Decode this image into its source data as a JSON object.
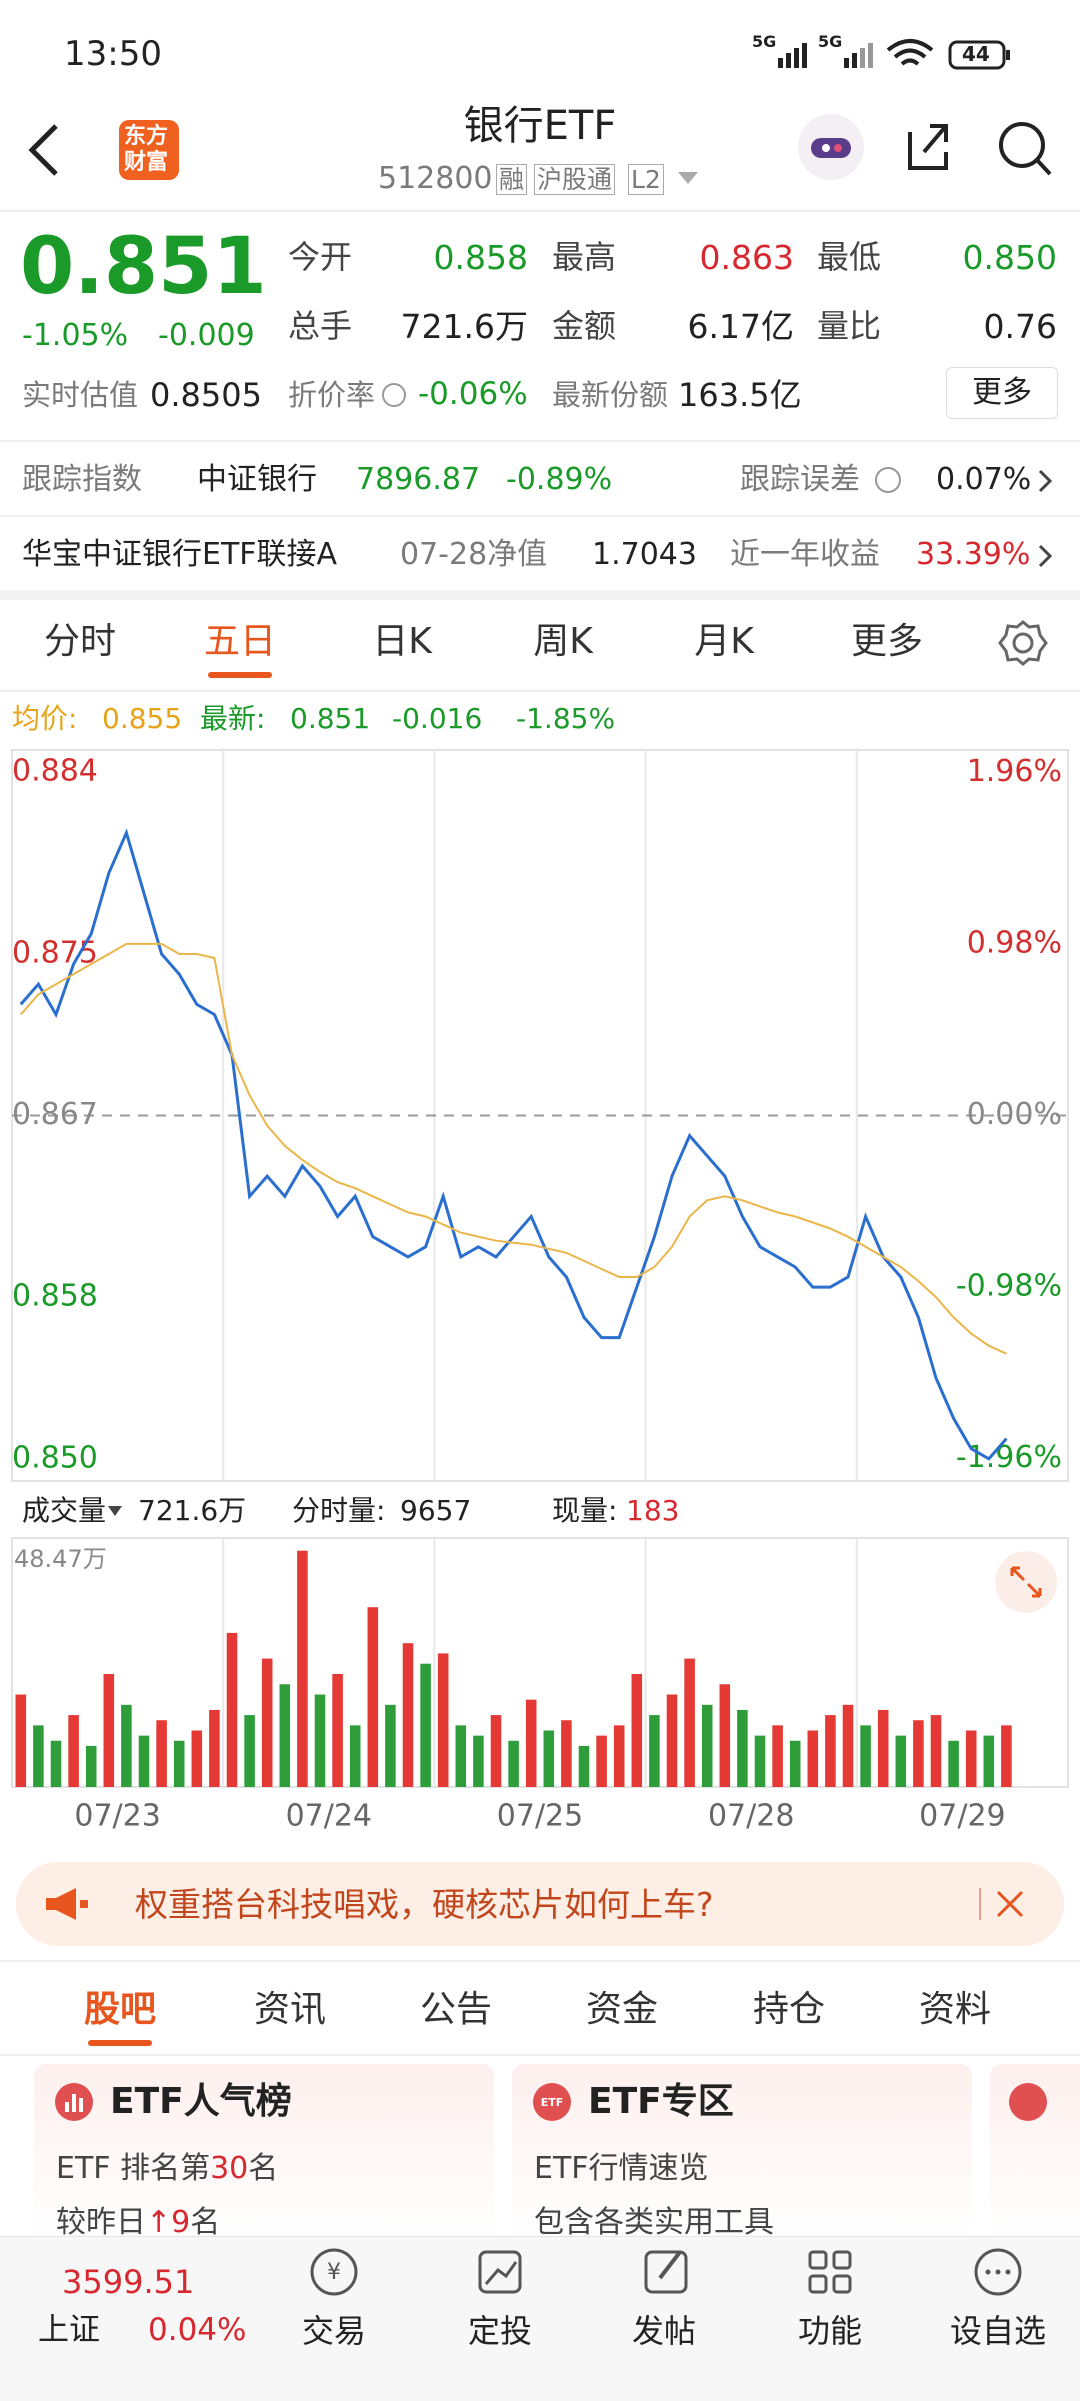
{
  "status_bar": {
    "time": "13:50",
    "network": [
      "5G",
      "5G"
    ],
    "battery": "44"
  },
  "header": {
    "logo": [
      "东方",
      "财富"
    ],
    "title": "银行ETF",
    "code": "512800",
    "tags": [
      "融",
      "沪股通",
      "L2"
    ]
  },
  "quote": {
    "price": "0.851",
    "change_pct": "-1.05%",
    "change": "-0.009",
    "stats": [
      {
        "label": "今开",
        "value": "0.858"
      },
      {
        "label": "最高",
        "value": "0.863"
      },
      {
        "label": "最低",
        "value": "0.850"
      },
      {
        "label": "总手",
        "value": "721.6万"
      },
      {
        "label": "金额",
        "value": "6.17亿"
      },
      {
        "label": "量比",
        "value": "0.76"
      }
    ],
    "estimate_label": "实时估值",
    "estimate": "0.8505",
    "discount_label": "折价率",
    "discount": "-0.06%",
    "shares_label": "最新份额",
    "shares": "163.5亿",
    "more": "更多"
  },
  "tracking": {
    "label": "跟踪指数",
    "index": "中证银行",
    "value": "7896.87",
    "change": "-0.89%",
    "error_label": "跟踪误差",
    "error": "0.07%"
  },
  "fund": {
    "name": "华宝中证银行ETF联接A",
    "nav_label": "07-28净值",
    "nav": "1.7043",
    "return_label": "近一年收益",
    "return": "33.39%"
  },
  "chart_tabs": [
    "分时",
    "五日",
    "日K",
    "周K",
    "月K",
    "更多"
  ],
  "info_line": {
    "avg_label": "均价: ",
    "avg": "0.855",
    "latest_label": "最新: ",
    "latest": "0.851",
    "change": "-0.016",
    "change_pct": "-1.85%"
  },
  "chart_data": [
    {
      "type": "line",
      "ylim": [
        0.8489,
        0.8851
      ],
      "yticks": [
        0.884,
        0.875,
        0.867,
        0.858,
        {
          "value": 0.85,
          "label": "0.850"
        }
      ],
      "y2lim": [
        -2.09,
        2.09
      ],
      "y2ticks": [
        {
          "value": 1.96,
          "label": "1.96%"
        },
        {
          "value": 0.98,
          "label": "0.98%"
        },
        {
          "value": 0,
          "label": "0.00%"
        },
        {
          "value": -0.98,
          "label": "-0.98%"
        },
        {
          "value": -1.96,
          "label": "-1.96%"
        }
      ],
      "day_labels": [
        "07/23",
        "07/24",
        "07/25",
        "07/28",
        "07/29"
      ],
      "series": [
        {
          "color": "#2a6fd0",
          "values": [
            0.8725,
            0.8735,
            0.872,
            0.8745,
            0.876,
            0.879,
            0.881,
            0.878,
            0.875,
            0.874,
            0.8725,
            0.872,
            0.87,
            0.863,
            0.864,
            0.863,
            0.8645,
            0.8635,
            0.862,
            0.863,
            0.861,
            0.8605,
            0.86,
            0.8605,
            0.863,
            0.86,
            0.8605,
            0.86,
            0.861,
            0.862,
            0.86,
            0.859,
            0.857,
            0.856,
            0.856,
            0.8585,
            0.861,
            0.864,
            0.866,
            0.865,
            0.864,
            0.862,
            0.8605,
            0.86,
            0.8595,
            0.8585,
            0.8585,
            0.859,
            0.862,
            0.86,
            0.859,
            0.857,
            0.854,
            0.852,
            0.8505,
            0.85,
            0.851
          ]
        },
        {
          "color": "#eab64a",
          "values": [
            0.872,
            0.873,
            0.8735,
            0.874,
            0.8745,
            0.875,
            0.8755,
            0.8755,
            0.8755,
            0.875,
            0.875,
            0.8748,
            0.87,
            0.868,
            0.8665,
            0.8655,
            0.8648,
            0.8642,
            0.8637,
            0.8634,
            0.863,
            0.8626,
            0.8622,
            0.862,
            0.8616,
            0.8612,
            0.861,
            0.8608,
            0.8607,
            0.8606,
            0.8604,
            0.8602,
            0.8598,
            0.8594,
            0.859,
            0.859,
            0.8595,
            0.8605,
            0.862,
            0.8628,
            0.863,
            0.8628,
            0.8625,
            0.8622,
            0.862,
            0.8617,
            0.8614,
            0.861,
            0.8605,
            0.86,
            0.8595,
            0.8588,
            0.858,
            0.857,
            0.8562,
            0.8556,
            0.8552
          ]
        }
      ]
    },
    {
      "type": "bar",
      "ylim": [
        0,
        48.47
      ],
      "yticks": [
        {
          "value": 48.47,
          "label": "48.47万"
        }
      ],
      "up_color": "#e53935",
      "down_color": "#2e9d3a",
      "values": [
        18,
        12,
        9,
        14,
        8,
        22,
        16,
        10,
        13,
        9,
        11,
        15,
        30,
        14,
        25,
        20,
        46,
        18,
        22,
        12,
        35,
        16,
        28,
        24,
        26,
        12,
        10,
        14,
        9,
        17,
        11,
        13,
        8,
        10,
        12,
        22,
        14,
        18,
        25,
        16,
        20,
        15,
        10,
        12,
        9,
        11,
        14,
        16,
        12,
        15,
        10,
        13,
        14,
        9,
        11,
        10,
        12
      ]
    }
  ],
  "volume_header": {
    "label": "成交量",
    "total": "721.6万",
    "period_label": "分时量:",
    "period": "9657",
    "current_label": "现量:",
    "current": "183"
  },
  "banner": "权重搭台科技唱戏，硬核芯片如何上车?",
  "tabs": [
    "股吧",
    "资讯",
    "公告",
    "资金",
    "持仓",
    "资料"
  ],
  "cards": [
    {
      "title": "ETF人气榜",
      "lines": [
        [
          "ETF 排名第",
          "30",
          "名"
        ],
        [
          "较昨日",
          "↑9",
          "名"
        ]
      ]
    },
    {
      "title": "ETF专区",
      "lines": [
        [
          "ETF行情速览"
        ],
        [
          "包含各类实用工具"
        ]
      ]
    }
  ],
  "bottom_nav": {
    "index_value": "3599.51",
    "index_name": "上证",
    "index_change": "0.04%",
    "items": [
      "交易",
      "定投",
      "发帖",
      "功能",
      "设自选"
    ]
  }
}
